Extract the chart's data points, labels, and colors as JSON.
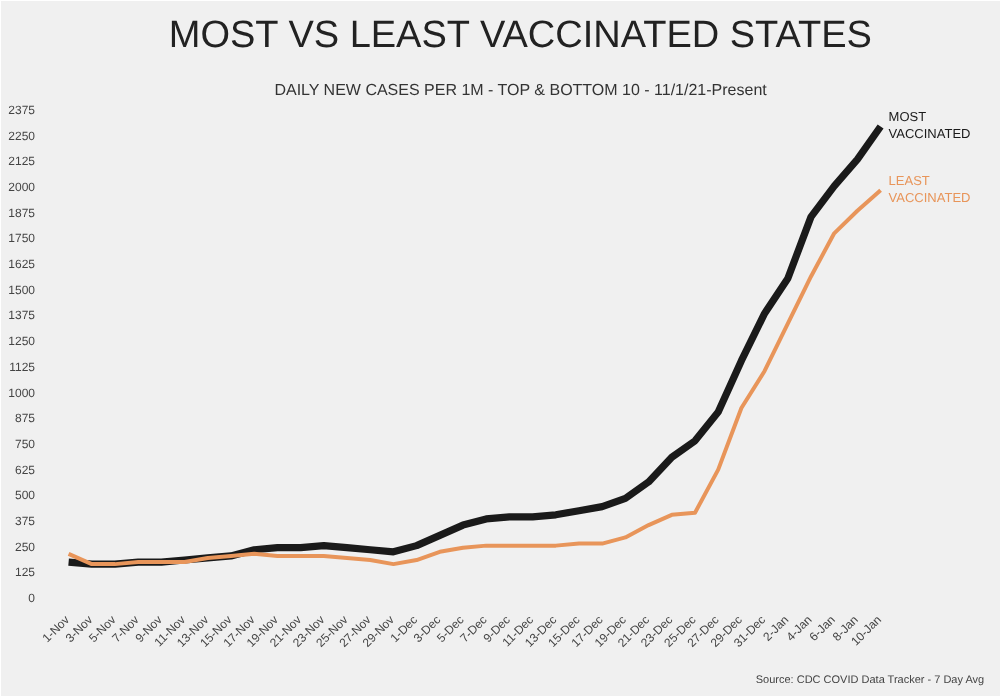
{
  "chart_data": {
    "type": "line",
    "title": "MOST VS LEAST VACCINATED STATES",
    "subtitle": "DAILY NEW CASES PER 1M - TOP & BOTTOM 10 - 11/1/21-Present",
    "annotations": [
      "Source: CDC COVID Data Tracker - 7 Day Avg"
    ],
    "categories": [
      "1-Nov",
      "3-Nov",
      "5-Nov",
      "7-Nov",
      "9-Nov",
      "11-Nov",
      "13-Nov",
      "15-Nov",
      "17-Nov",
      "19-Nov",
      "21-Nov",
      "23-Nov",
      "25-Nov",
      "27-Nov",
      "29-Nov",
      "1-Dec",
      "3-Dec",
      "5-Dec",
      "7-Dec",
      "9-Dec",
      "11-Dec",
      "13-Dec",
      "15-Dec",
      "17-Dec",
      "19-Dec",
      "21-Dec",
      "23-Dec",
      "25-Dec",
      "27-Dec",
      "29-Dec",
      "31-Dec",
      "2-Jan",
      "4-Jan",
      "6-Jan",
      "8-Jan",
      "10-Jan"
    ],
    "series": [
      {
        "name": "MOST VACCINATED",
        "color": "#1a1a1a",
        "values": [
          170,
          160,
          160,
          170,
          170,
          180,
          190,
          200,
          230,
          240,
          240,
          250,
          240,
          230,
          220,
          250,
          300,
          350,
          380,
          390,
          390,
          400,
          420,
          440,
          480,
          560,
          680,
          760,
          900,
          1150,
          1380,
          1550,
          1850,
          2000,
          2130,
          2290
        ]
      },
      {
        "name": "LEAST VACCINATED",
        "color": "#e8955a",
        "values": [
          210,
          160,
          160,
          170,
          170,
          170,
          190,
          200,
          210,
          200,
          200,
          200,
          190,
          180,
          160,
          180,
          220,
          240,
          250,
          250,
          250,
          250,
          260,
          260,
          290,
          350,
          400,
          410,
          620,
          920,
          1100,
          1330,
          1560,
          1770,
          1880,
          1980
        ]
      }
    ],
    "ylim": [
      0,
      2375
    ],
    "yticks": [
      0,
      125,
      250,
      375,
      500,
      625,
      750,
      875,
      1000,
      1125,
      1250,
      1375,
      1500,
      1625,
      1750,
      1875,
      2000,
      2125,
      2250,
      2375
    ],
    "grid": false,
    "legend": false
  }
}
